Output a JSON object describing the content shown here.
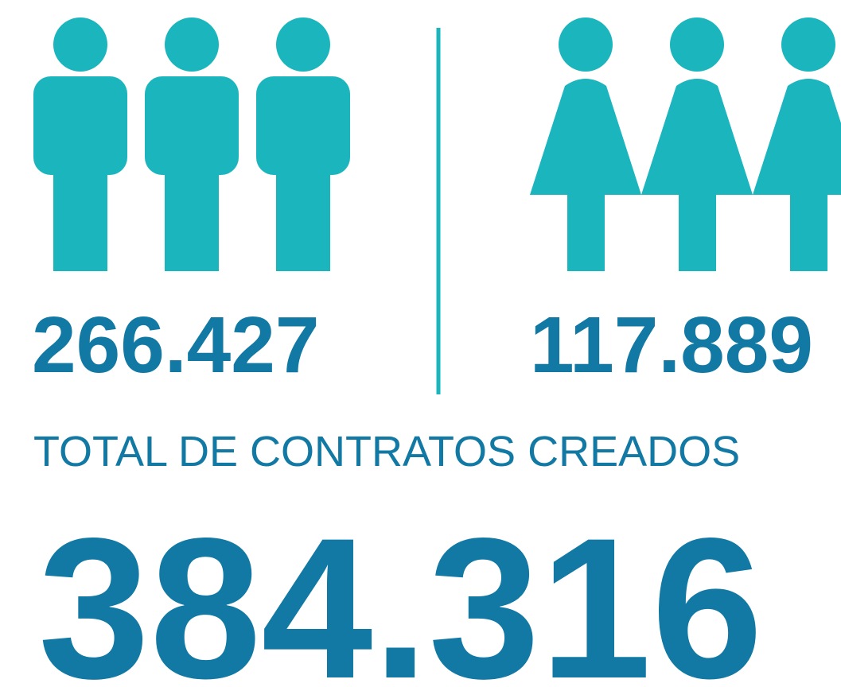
{
  "men": {
    "count": "266.427"
  },
  "women": {
    "count": "117.889"
  },
  "total": {
    "label": "TOTAL DE CONTRATOS CREADOS",
    "count": "384.316"
  }
}
